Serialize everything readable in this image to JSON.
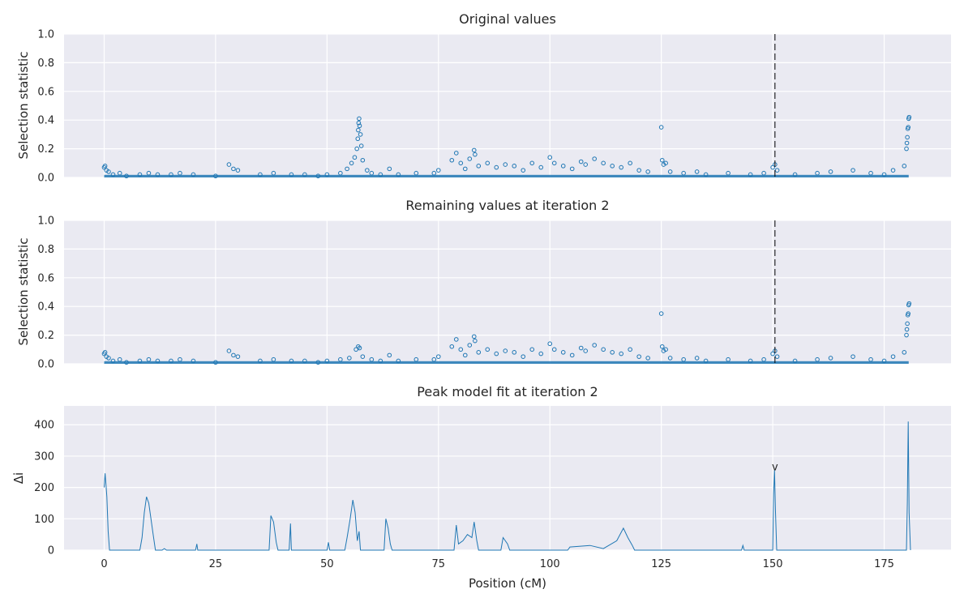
{
  "chart_data": [
    {
      "type": "scatter",
      "title": "Original values",
      "xlabel": "",
      "ylabel": "Selection statistic",
      "xlim": [
        -9,
        190
      ],
      "ylim": [
        0,
        1
      ],
      "yticks": [
        "0.0",
        "0.2",
        "0.4",
        "0.6",
        "0.8",
        "1.0"
      ],
      "grid": true,
      "vline_x": 150.5,
      "color": "#1f77b4",
      "points": [
        [
          0,
          0.07
        ],
        [
          0.2,
          0.08
        ],
        [
          0.5,
          0.05
        ],
        [
          1,
          0.04
        ],
        [
          2,
          0.02
        ],
        [
          3.5,
          0.03
        ],
        [
          5,
          0.01
        ],
        [
          8,
          0.02
        ],
        [
          10,
          0.03
        ],
        [
          12,
          0.02
        ],
        [
          15,
          0.02
        ],
        [
          17,
          0.03
        ],
        [
          20,
          0.02
        ],
        [
          25,
          0.01
        ],
        [
          28,
          0.09
        ],
        [
          29,
          0.06
        ],
        [
          30,
          0.05
        ],
        [
          35,
          0.02
        ],
        [
          38,
          0.03
        ],
        [
          42,
          0.02
        ],
        [
          45,
          0.02
        ],
        [
          48,
          0.01
        ],
        [
          50,
          0.02
        ],
        [
          53,
          0.03
        ],
        [
          54.5,
          0.06
        ],
        [
          55.5,
          0.1
        ],
        [
          56.2,
          0.14
        ],
        [
          56.7,
          0.2
        ],
        [
          56.9,
          0.27
        ],
        [
          57,
          0.33
        ],
        [
          57.1,
          0.38
        ],
        [
          57.2,
          0.41
        ],
        [
          57.3,
          0.36
        ],
        [
          57.5,
          0.3
        ],
        [
          57.7,
          0.22
        ],
        [
          58,
          0.12
        ],
        [
          59,
          0.05
        ],
        [
          60,
          0.03
        ],
        [
          62,
          0.02
        ],
        [
          64,
          0.06
        ],
        [
          66,
          0.02
        ],
        [
          70,
          0.03
        ],
        [
          74,
          0.03
        ],
        [
          75,
          0.05
        ],
        [
          78,
          0.12
        ],
        [
          79,
          0.17
        ],
        [
          80,
          0.1
        ],
        [
          81,
          0.06
        ],
        [
          82,
          0.13
        ],
        [
          83,
          0.19
        ],
        [
          83.2,
          0.16
        ],
        [
          84,
          0.08
        ],
        [
          86,
          0.1
        ],
        [
          88,
          0.07
        ],
        [
          90,
          0.09
        ],
        [
          92,
          0.08
        ],
        [
          94,
          0.05
        ],
        [
          96,
          0.1
        ],
        [
          98,
          0.07
        ],
        [
          100,
          0.14
        ],
        [
          101,
          0.1
        ],
        [
          103,
          0.08
        ],
        [
          105,
          0.06
        ],
        [
          107,
          0.11
        ],
        [
          108,
          0.09
        ],
        [
          110,
          0.13
        ],
        [
          112,
          0.1
        ],
        [
          114,
          0.08
        ],
        [
          116,
          0.07
        ],
        [
          118,
          0.1
        ],
        [
          120,
          0.05
        ],
        [
          122,
          0.04
        ],
        [
          125,
          0.35
        ],
        [
          125.2,
          0.12
        ],
        [
          125.5,
          0.09
        ],
        [
          126,
          0.1
        ],
        [
          127,
          0.04
        ],
        [
          130,
          0.03
        ],
        [
          133,
          0.04
        ],
        [
          135,
          0.02
        ],
        [
          140,
          0.03
        ],
        [
          145,
          0.02
        ],
        [
          148,
          0.03
        ],
        [
          150,
          0.07
        ],
        [
          150.5,
          0.09
        ],
        [
          151,
          0.05
        ],
        [
          155,
          0.02
        ],
        [
          160,
          0.03
        ],
        [
          163,
          0.04
        ],
        [
          168,
          0.05
        ],
        [
          172,
          0.03
        ],
        [
          175,
          0.02
        ],
        [
          177,
          0.05
        ],
        [
          179.5,
          0.08
        ],
        [
          180,
          0.2
        ],
        [
          180.1,
          0.24
        ],
        [
          180.2,
          0.28
        ],
        [
          180.3,
          0.34
        ],
        [
          180.4,
          0.35
        ],
        [
          180.5,
          0.41
        ],
        [
          180.6,
          0.42
        ]
      ]
    },
    {
      "type": "scatter",
      "title": "Remaining values at iteration 2",
      "xlabel": "",
      "ylabel": "Selection statistic",
      "xlim": [
        -9,
        190
      ],
      "ylim": [
        0,
        1
      ],
      "yticks": [
        "0.0",
        "0.2",
        "0.4",
        "0.6",
        "0.8",
        "1.0"
      ],
      "grid": true,
      "vline_x": 150.5,
      "color": "#1f77b4",
      "points": [
        [
          0,
          0.07
        ],
        [
          0.2,
          0.08
        ],
        [
          0.5,
          0.05
        ],
        [
          1,
          0.04
        ],
        [
          2,
          0.02
        ],
        [
          3.5,
          0.03
        ],
        [
          5,
          0.01
        ],
        [
          8,
          0.02
        ],
        [
          10,
          0.03
        ],
        [
          12,
          0.02
        ],
        [
          15,
          0.02
        ],
        [
          17,
          0.03
        ],
        [
          20,
          0.02
        ],
        [
          25,
          0.01
        ],
        [
          28,
          0.09
        ],
        [
          29,
          0.06
        ],
        [
          30,
          0.05
        ],
        [
          35,
          0.02
        ],
        [
          38,
          0.03
        ],
        [
          42,
          0.02
        ],
        [
          45,
          0.02
        ],
        [
          48,
          0.01
        ],
        [
          50,
          0.02
        ],
        [
          53,
          0.03
        ],
        [
          55,
          0.04
        ],
        [
          56.5,
          0.1
        ],
        [
          57,
          0.12
        ],
        [
          57.3,
          0.11
        ],
        [
          58,
          0.05
        ],
        [
          60,
          0.03
        ],
        [
          62,
          0.02
        ],
        [
          64,
          0.06
        ],
        [
          66,
          0.02
        ],
        [
          70,
          0.03
        ],
        [
          74,
          0.03
        ],
        [
          75,
          0.05
        ],
        [
          78,
          0.12
        ],
        [
          79,
          0.17
        ],
        [
          80,
          0.1
        ],
        [
          81,
          0.06
        ],
        [
          82,
          0.13
        ],
        [
          83,
          0.19
        ],
        [
          83.2,
          0.16
        ],
        [
          84,
          0.08
        ],
        [
          86,
          0.1
        ],
        [
          88,
          0.07
        ],
        [
          90,
          0.09
        ],
        [
          92,
          0.08
        ],
        [
          94,
          0.05
        ],
        [
          96,
          0.1
        ],
        [
          98,
          0.07
        ],
        [
          100,
          0.14
        ],
        [
          101,
          0.1
        ],
        [
          103,
          0.08
        ],
        [
          105,
          0.06
        ],
        [
          107,
          0.11
        ],
        [
          108,
          0.09
        ],
        [
          110,
          0.13
        ],
        [
          112,
          0.1
        ],
        [
          114,
          0.08
        ],
        [
          116,
          0.07
        ],
        [
          118,
          0.1
        ],
        [
          120,
          0.05
        ],
        [
          122,
          0.04
        ],
        [
          125,
          0.35
        ],
        [
          125.2,
          0.12
        ],
        [
          125.5,
          0.09
        ],
        [
          126,
          0.1
        ],
        [
          127,
          0.04
        ],
        [
          130,
          0.03
        ],
        [
          133,
          0.04
        ],
        [
          135,
          0.02
        ],
        [
          140,
          0.03
        ],
        [
          145,
          0.02
        ],
        [
          148,
          0.03
        ],
        [
          150,
          0.07
        ],
        [
          150.5,
          0.09
        ],
        [
          151,
          0.05
        ],
        [
          155,
          0.02
        ],
        [
          160,
          0.03
        ],
        [
          163,
          0.04
        ],
        [
          168,
          0.05
        ],
        [
          172,
          0.03
        ],
        [
          175,
          0.02
        ],
        [
          177,
          0.05
        ],
        [
          179.5,
          0.08
        ],
        [
          180,
          0.2
        ],
        [
          180.1,
          0.24
        ],
        [
          180.2,
          0.28
        ],
        [
          180.3,
          0.34
        ],
        [
          180.4,
          0.35
        ],
        [
          180.5,
          0.41
        ],
        [
          180.6,
          0.42
        ]
      ]
    },
    {
      "type": "line",
      "title": "Peak model fit at iteration 2",
      "xlabel": "Position (cM)",
      "ylabel": "Δi",
      "xlim": [
        -9,
        190
      ],
      "ylim": [
        0,
        460
      ],
      "yticks": [
        "0",
        "100",
        "200",
        "300",
        "400"
      ],
      "xticks": [
        "0",
        "25",
        "50",
        "75",
        "100",
        "125",
        "150",
        "175"
      ],
      "grid": true,
      "marker": {
        "x": 150.5,
        "y": 270,
        "text": "v"
      },
      "color": "#1f77b4",
      "points": [
        [
          0,
          200
        ],
        [
          0.2,
          245
        ],
        [
          0.4,
          210
        ],
        [
          0.6,
          170
        ],
        [
          0.9,
          60
        ],
        [
          1.2,
          0
        ],
        [
          8,
          0
        ],
        [
          8.5,
          40
        ],
        [
          9,
          120
        ],
        [
          9.5,
          170
        ],
        [
          10,
          150
        ],
        [
          11,
          50
        ],
        [
          11.5,
          0
        ],
        [
          13,
          0
        ],
        [
          13.5,
          5
        ],
        [
          14,
          0
        ],
        [
          20.5,
          0
        ],
        [
          20.8,
          20
        ],
        [
          21,
          0
        ],
        [
          37,
          0
        ],
        [
          37.4,
          110
        ],
        [
          38,
          90
        ],
        [
          38.6,
          25
        ],
        [
          39,
          0
        ],
        [
          41.5,
          0
        ],
        [
          41.8,
          85
        ],
        [
          42,
          0
        ],
        [
          50,
          0
        ],
        [
          50.3,
          25
        ],
        [
          50.6,
          0
        ],
        [
          54,
          0
        ],
        [
          54.5,
          40
        ],
        [
          55.2,
          100
        ],
        [
          55.8,
          160
        ],
        [
          56.3,
          120
        ],
        [
          56.8,
          30
        ],
        [
          57.2,
          60
        ],
        [
          57.5,
          0
        ],
        [
          62.8,
          0
        ],
        [
          63.2,
          100
        ],
        [
          63.7,
          70
        ],
        [
          64.2,
          20
        ],
        [
          64.6,
          0
        ],
        [
          78.5,
          0
        ],
        [
          79,
          80
        ],
        [
          79.5,
          20
        ],
        [
          80.5,
          30
        ],
        [
          81.5,
          50
        ],
        [
          82.5,
          40
        ],
        [
          83,
          90
        ],
        [
          83.6,
          30
        ],
        [
          84,
          0
        ],
        [
          89,
          0
        ],
        [
          89.5,
          40
        ],
        [
          90.5,
          20
        ],
        [
          91,
          0
        ],
        [
          104,
          0
        ],
        [
          104.5,
          10
        ],
        [
          109,
          15
        ],
        [
          112,
          5
        ],
        [
          115,
          30
        ],
        [
          116.5,
          70
        ],
        [
          117.5,
          40
        ],
        [
          118.5,
          15
        ],
        [
          119,
          0
        ],
        [
          143,
          0
        ],
        [
          143.3,
          15
        ],
        [
          143.6,
          0
        ],
        [
          150,
          0
        ],
        [
          150.2,
          180
        ],
        [
          150.4,
          255
        ],
        [
          150.6,
          130
        ],
        [
          150.9,
          0
        ],
        [
          180,
          0
        ],
        [
          180.2,
          150
        ],
        [
          180.4,
          410
        ],
        [
          180.6,
          120
        ],
        [
          180.9,
          0
        ]
      ]
    }
  ]
}
